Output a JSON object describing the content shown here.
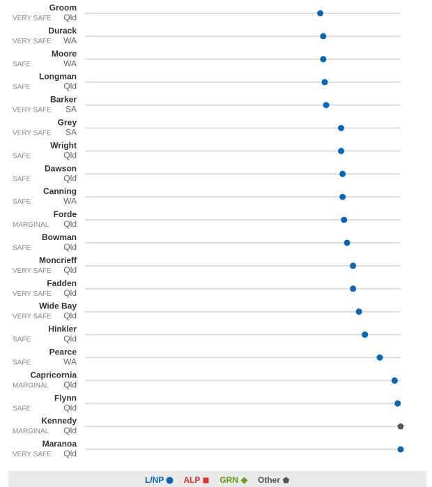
{
  "chart_data": {
    "type": "dot",
    "seats": [
      {
        "name": "Groom",
        "margin": "VERY SAFE",
        "state": "Qld",
        "party": "lnp",
        "value": 0.79
      },
      {
        "name": "Durack",
        "margin": "VERY SAFE",
        "state": "WA",
        "party": "lnp",
        "value": 0.8
      },
      {
        "name": "Moore",
        "margin": "SAFE",
        "state": "WA",
        "party": "lnp",
        "value": 0.8
      },
      {
        "name": "Longman",
        "margin": "SAFE",
        "state": "Qld",
        "party": "lnp",
        "value": 0.805
      },
      {
        "name": "Barker",
        "margin": "VERY SAFE",
        "state": "SA",
        "party": "lnp",
        "value": 0.81
      },
      {
        "name": "Grey",
        "margin": "VERY SAFE",
        "state": "SA",
        "party": "lnp",
        "value": 0.86
      },
      {
        "name": "Wright",
        "margin": "SAFE",
        "state": "Qld",
        "party": "lnp",
        "value": 0.86
      },
      {
        "name": "Dawson",
        "margin": "SAFE",
        "state": "Qld",
        "party": "lnp",
        "value": 0.865
      },
      {
        "name": "Canning",
        "margin": "SAFE",
        "state": "WA",
        "party": "lnp",
        "value": 0.865
      },
      {
        "name": "Forde",
        "margin": "MARGINAL",
        "state": "Qld",
        "party": "lnp",
        "value": 0.87
      },
      {
        "name": "Bowman",
        "margin": "SAFE",
        "state": "Qld",
        "party": "lnp",
        "value": 0.88
      },
      {
        "name": "Moncrieff",
        "margin": "VERY SAFE",
        "state": "Qld",
        "party": "lnp",
        "value": 0.9
      },
      {
        "name": "Fadden",
        "margin": "VERY SAFE",
        "state": "Qld",
        "party": "lnp",
        "value": 0.9
      },
      {
        "name": "Wide Bay",
        "margin": "VERY SAFE",
        "state": "Qld",
        "party": "lnp",
        "value": 0.92
      },
      {
        "name": "Hinkler",
        "margin": "SAFE",
        "state": "Qld",
        "party": "lnp",
        "value": 0.94
      },
      {
        "name": "Pearce",
        "margin": "SAFE",
        "state": "WA",
        "party": "lnp",
        "value": 0.99
      },
      {
        "name": "Capricornia",
        "margin": "MARGINAL",
        "state": "Qld",
        "party": "lnp",
        "value": 1.04
      },
      {
        "name": "Flynn",
        "margin": "SAFE",
        "state": "Qld",
        "party": "lnp",
        "value": 1.05
      },
      {
        "name": "Kennedy",
        "margin": "MARGINAL",
        "state": "Qld",
        "party": "other",
        "value": 1.06
      },
      {
        "name": "Maranoa",
        "margin": "VERY SAFE",
        "state": "Qld",
        "party": "lnp",
        "value": 1.06
      }
    ],
    "legend": [
      {
        "key": "lnp",
        "label": "L/NP",
        "color": "#0b66b2",
        "shape": "circle"
      },
      {
        "key": "alp",
        "label": "ALP",
        "color": "#d93434",
        "shape": "square"
      },
      {
        "key": "grn",
        "label": "GRN",
        "color": "#6a9a1f",
        "shape": "diamond"
      },
      {
        "key": "other",
        "label": "Other",
        "color": "#555555",
        "shape": "pentagon"
      }
    ],
    "legend_position": "bottom",
    "grid": false
  }
}
